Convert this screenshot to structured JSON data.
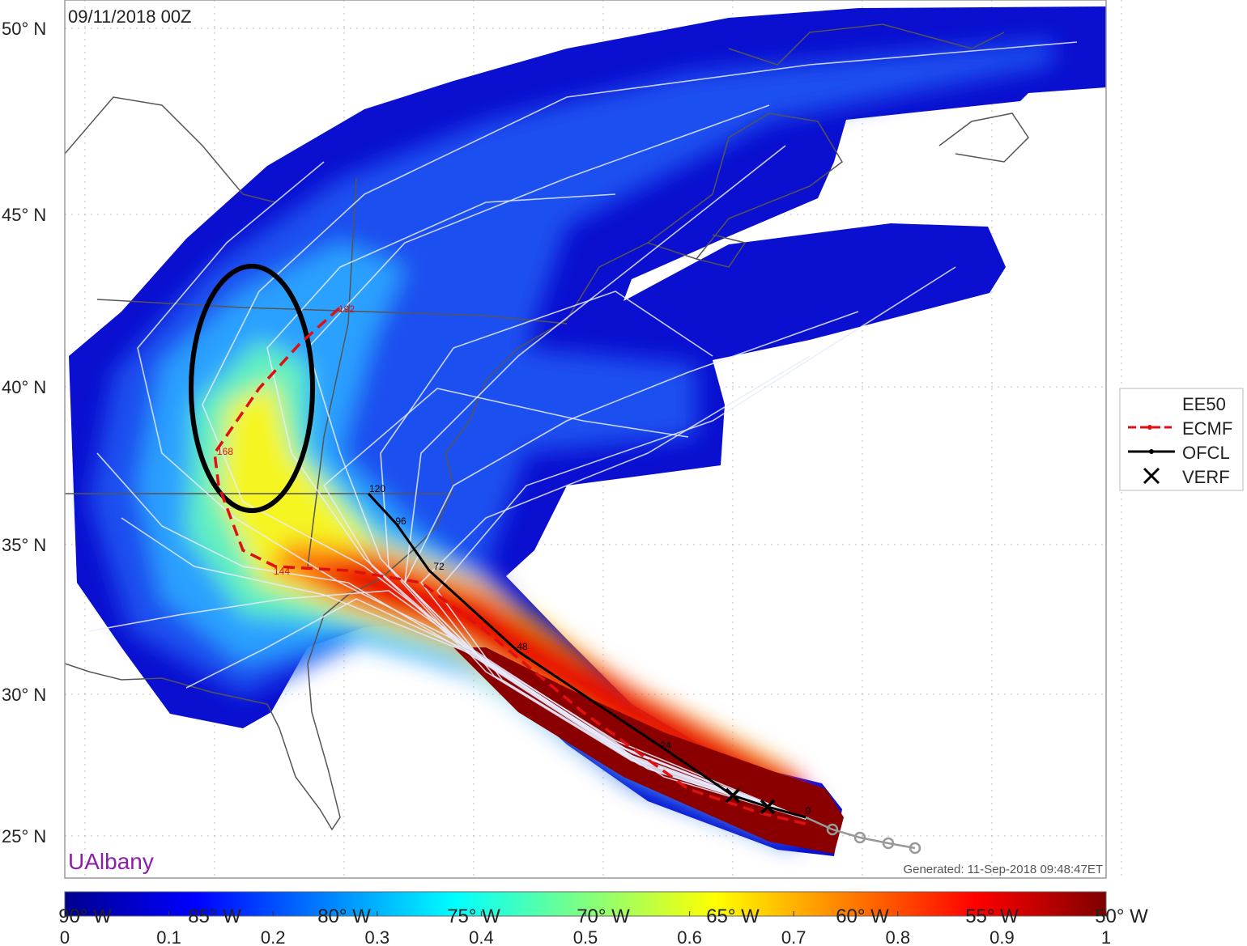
{
  "map": {
    "title": "09/11/2018 00Z",
    "lat_labels": [
      "50° N",
      "45° N",
      "40° N",
      "35° N",
      "30° N",
      "25° N"
    ],
    "lon_labels": [
      "90° W",
      "85° W",
      "80° W",
      "75° W",
      "70° W",
      "65° W",
      "60° W",
      "55° W",
      "50° W"
    ],
    "legend": [
      "EE50",
      "ECMF",
      "OFCL",
      "VERF"
    ],
    "ofcl_hours": [
      "120",
      "96",
      "72",
      "48",
      "24",
      "0"
    ],
    "ecmf_hours": [
      "192",
      "168",
      "144"
    ],
    "credit": "UAlbany",
    "generated": "Generated: 11-Sep-2018 09:48:47ET",
    "colorbar": {
      "range": [
        0,
        1
      ],
      "ticks": [
        0,
        0.1,
        0.2,
        0.3,
        0.4,
        0.5,
        0.6,
        0.7,
        0.8,
        0.9,
        1
      ],
      "colormap": [
        "#00008f",
        "#0000ff",
        "#0080ff",
        "#00ffff",
        "#80ff80",
        "#ffff00",
        "#ff8000",
        "#ff0000",
        "#800000"
      ]
    }
  }
}
